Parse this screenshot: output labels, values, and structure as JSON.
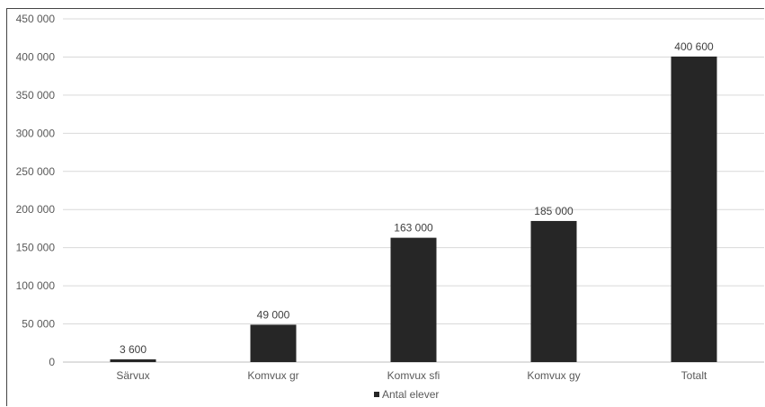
{
  "chart_data": {
    "type": "bar",
    "categories": [
      "Särvux",
      "Komvux gr",
      "Komvux sfi",
      "Komvux gy",
      "Totalt"
    ],
    "series": [
      {
        "name": "Antal elever",
        "values": [
          3600,
          49000,
          163000,
          185000,
          400600
        ],
        "data_labels": [
          "3 600",
          "49 000",
          "163 000",
          "185 000",
          "400 600"
        ],
        "color": "#262626"
      }
    ],
    "y_ticks": [
      "0",
      "50 000",
      "100 000",
      "150 000",
      "200 000",
      "250 000",
      "300 000",
      "350 000",
      "400 000",
      "450 000"
    ],
    "ylim": [
      0,
      450000
    ],
    "grid": true,
    "gridline_color": "#d9d9d9",
    "legend": "bottom-center",
    "title": "",
    "xlabel": "",
    "ylabel": ""
  }
}
